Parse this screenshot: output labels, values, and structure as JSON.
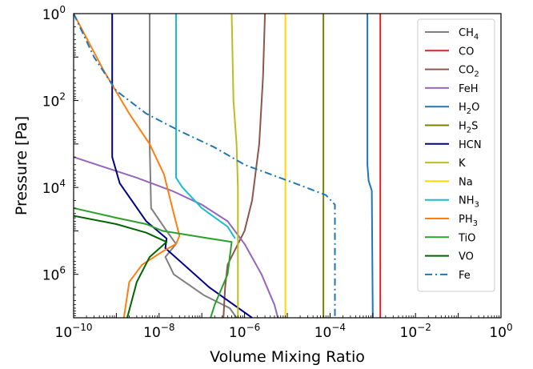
{
  "chart_data": {
    "type": "line",
    "xlabel": "Volume Mixing Ratio",
    "ylabel": "Pressure [Pa]",
    "xscale": "log",
    "yscale": "log",
    "xlim": [
      1e-10,
      1
    ],
    "ylim": [
      1.0,
      10000000.0
    ],
    "y_inverted": true,
    "grid": false,
    "legend_position": "top-right",
    "x_ticks": [
      {
        "value": 1e-10,
        "base": "10",
        "exp": "−10"
      },
      {
        "value": 1e-08,
        "base": "10",
        "exp": "−8"
      },
      {
        "value": 1e-06,
        "base": "10",
        "exp": "−6"
      },
      {
        "value": 0.0001,
        "base": "10",
        "exp": "−4"
      },
      {
        "value": 0.01,
        "base": "10",
        "exp": "−2"
      },
      {
        "value": 1,
        "base": "10",
        "exp": "0"
      }
    ],
    "y_ticks": [
      {
        "value": 1,
        "base": "10",
        "exp": "0"
      },
      {
        "value": 100,
        "base": "10",
        "exp": "2"
      },
      {
        "value": 10000,
        "base": "10",
        "exp": "4"
      },
      {
        "value": 1000000,
        "base": "10",
        "exp": "6"
      }
    ],
    "series": [
      {
        "name": "CH4",
        "name_main": "CH",
        "name_sub": "4",
        "color": "#7f7f7f",
        "dash": "solid",
        "points": [
          [
            6e-09,
            1
          ],
          [
            6e-09,
            1000
          ],
          [
            6.5e-09,
            30000
          ],
          [
            1.5e-08,
            100000
          ],
          [
            2.5e-08,
            200000
          ],
          [
            1.4e-08,
            400000
          ],
          [
            2.2e-08,
            1000000.0
          ],
          [
            1.1e-07,
            3000000.0
          ],
          [
            4.5e-07,
            6000000.0
          ],
          [
            6.5e-07,
            10000000.0
          ]
        ]
      },
      {
        "name": "CO",
        "name_main": "CO",
        "name_sub": "",
        "color": "#d62728",
        "dash": "solid",
        "points": [
          [
            0.0015,
            1
          ],
          [
            0.0015,
            10000000.0
          ]
        ]
      },
      {
        "name": "CO2",
        "name_main": "CO",
        "name_sub": "2",
        "color": "#8c564b",
        "dash": "solid",
        "points": [
          [
            3e-06,
            1
          ],
          [
            2.7e-06,
            30
          ],
          [
            2.2e-06,
            1000
          ],
          [
            1.5e-06,
            20000
          ],
          [
            1e-06,
            100000
          ],
          [
            4e-07,
            600000
          ],
          [
            3.5e-07,
            2000000.0
          ],
          [
            3.2e-07,
            10000000.0
          ]
        ]
      },
      {
        "name": "FeH",
        "name_main": "FeH",
        "name_sub": "",
        "color": "#9467bd",
        "dash": "solid",
        "points": [
          [
            1e-10,
            2000
          ],
          [
            3e-09,
            6000
          ],
          [
            2e-08,
            12000
          ],
          [
            1e-07,
            25000
          ],
          [
            4e-07,
            60000
          ],
          [
            1e-06,
            200000
          ],
          [
            2.5e-06,
            1000000.0
          ],
          [
            5e-06,
            5000000.0
          ],
          [
            6e-06,
            10000000.0
          ]
        ]
      },
      {
        "name": "H2O",
        "name_main": "H",
        "name_sub": "2",
        "name_tail": "O",
        "color": "#1f77b4",
        "dash": "solid",
        "points": [
          [
            0.00075,
            1
          ],
          [
            0.00075,
            3000
          ],
          [
            0.0008,
            7000
          ],
          [
            0.00095,
            12000
          ],
          [
            0.001,
            10000000.0
          ]
        ]
      },
      {
        "name": "H2S",
        "name_main": "H",
        "name_sub": "2",
        "name_tail": "S",
        "color": "#808000",
        "dash": "solid",
        "points": [
          [
            7e-05,
            1
          ],
          [
            7e-05,
            10000000.0
          ]
        ]
      },
      {
        "name": "HCN",
        "name_main": "HCN",
        "name_sub": "",
        "color": "#00008b",
        "dash": "solid",
        "points": [
          [
            8e-10,
            1
          ],
          [
            8e-10,
            2000
          ],
          [
            1.2e-09,
            8000
          ],
          [
            5e-09,
            60000
          ],
          [
            1.5e-08,
            150000
          ],
          [
            1.4e-08,
            250000
          ],
          [
            1.5e-07,
            2000000.0
          ],
          [
            1.5e-06,
            10000000.0
          ]
        ]
      },
      {
        "name": "K",
        "name_main": "K",
        "name_sub": "",
        "color": "#bcbd22",
        "dash": "solid",
        "points": [
          [
            5e-07,
            1
          ],
          [
            5.5e-07,
            100
          ],
          [
            6.5e-07,
            1000
          ],
          [
            7e-07,
            10000
          ],
          [
            7e-07,
            10000000.0
          ]
        ]
      },
      {
        "name": "Na",
        "name_main": "Na",
        "name_sub": "",
        "color": "#ffd700",
        "dash": "solid",
        "points": [
          [
            9e-06,
            1
          ],
          [
            9e-06,
            10000000.0
          ]
        ]
      },
      {
        "name": "NH3",
        "name_main": "NH",
        "name_sub": "3",
        "color": "#17becf",
        "dash": "solid",
        "points": [
          [
            2.5e-08,
            1
          ],
          [
            2.5e-08,
            6000
          ],
          [
            3.5e-08,
            10000
          ],
          [
            1e-07,
            30000
          ],
          [
            4e-07,
            80000
          ],
          [
            6e-07,
            150000
          ]
        ]
      },
      {
        "name": "PH3",
        "name_main": "PH",
        "name_sub": "3",
        "color": "#ff7f0e",
        "dash": "solid",
        "points": [
          [
            1e-10,
            1
          ],
          [
            5e-10,
            20
          ],
          [
            2e-09,
            200
          ],
          [
            6e-09,
            1000
          ],
          [
            1.3e-08,
            5000
          ],
          [
            2.2e-08,
            40000
          ],
          [
            3e-08,
            130000
          ],
          [
            2.5e-08,
            200000
          ],
          [
            1.2e-08,
            300000
          ],
          [
            4e-09,
            600000
          ],
          [
            2e-09,
            1500000.0
          ],
          [
            1.5e-09,
            10000000.0
          ]
        ]
      },
      {
        "name": "TiO",
        "name_main": "TiO",
        "name_sub": "",
        "color": "#2ca02c",
        "dash": "solid",
        "points": [
          [
            1e-10,
            30000
          ],
          [
            1e-09,
            50000
          ],
          [
            5e-09,
            70000
          ],
          [
            1.2e-08,
            100000
          ],
          [
            1e-07,
            140000
          ],
          [
            5e-07,
            180000
          ],
          [
            4e-07,
            1000000.0
          ],
          [
            2e-07,
            5000000.0
          ],
          [
            1.6e-07,
            10000000.0
          ]
        ]
      },
      {
        "name": "VO",
        "name_main": "VO",
        "name_sub": "",
        "color": "#006400",
        "dash": "solid",
        "points": [
          [
            1e-10,
            45000
          ],
          [
            1e-09,
            70000
          ],
          [
            5e-09,
            110000
          ],
          [
            1.5e-08,
            180000
          ],
          [
            6e-09,
            400000
          ],
          [
            3e-09,
            1500000.0
          ],
          [
            1.8e-09,
            10000000.0
          ]
        ]
      },
      {
        "name": "Fe",
        "name_main": "Fe",
        "name_sub": "",
        "color": "#1f77b4",
        "dash": "dashdot",
        "points": [
          [
            1e-10,
            1
          ],
          [
            3e-10,
            10
          ],
          [
            1e-09,
            60
          ],
          [
            5e-09,
            200
          ],
          [
            3e-08,
            500
          ],
          [
            2e-07,
            1200
          ],
          [
            1e-06,
            3000
          ],
          [
            1.5e-05,
            8000
          ],
          [
            8e-05,
            15000
          ],
          [
            0.00013,
            25000
          ],
          [
            0.00013,
            10000000.0
          ]
        ]
      }
    ]
  }
}
